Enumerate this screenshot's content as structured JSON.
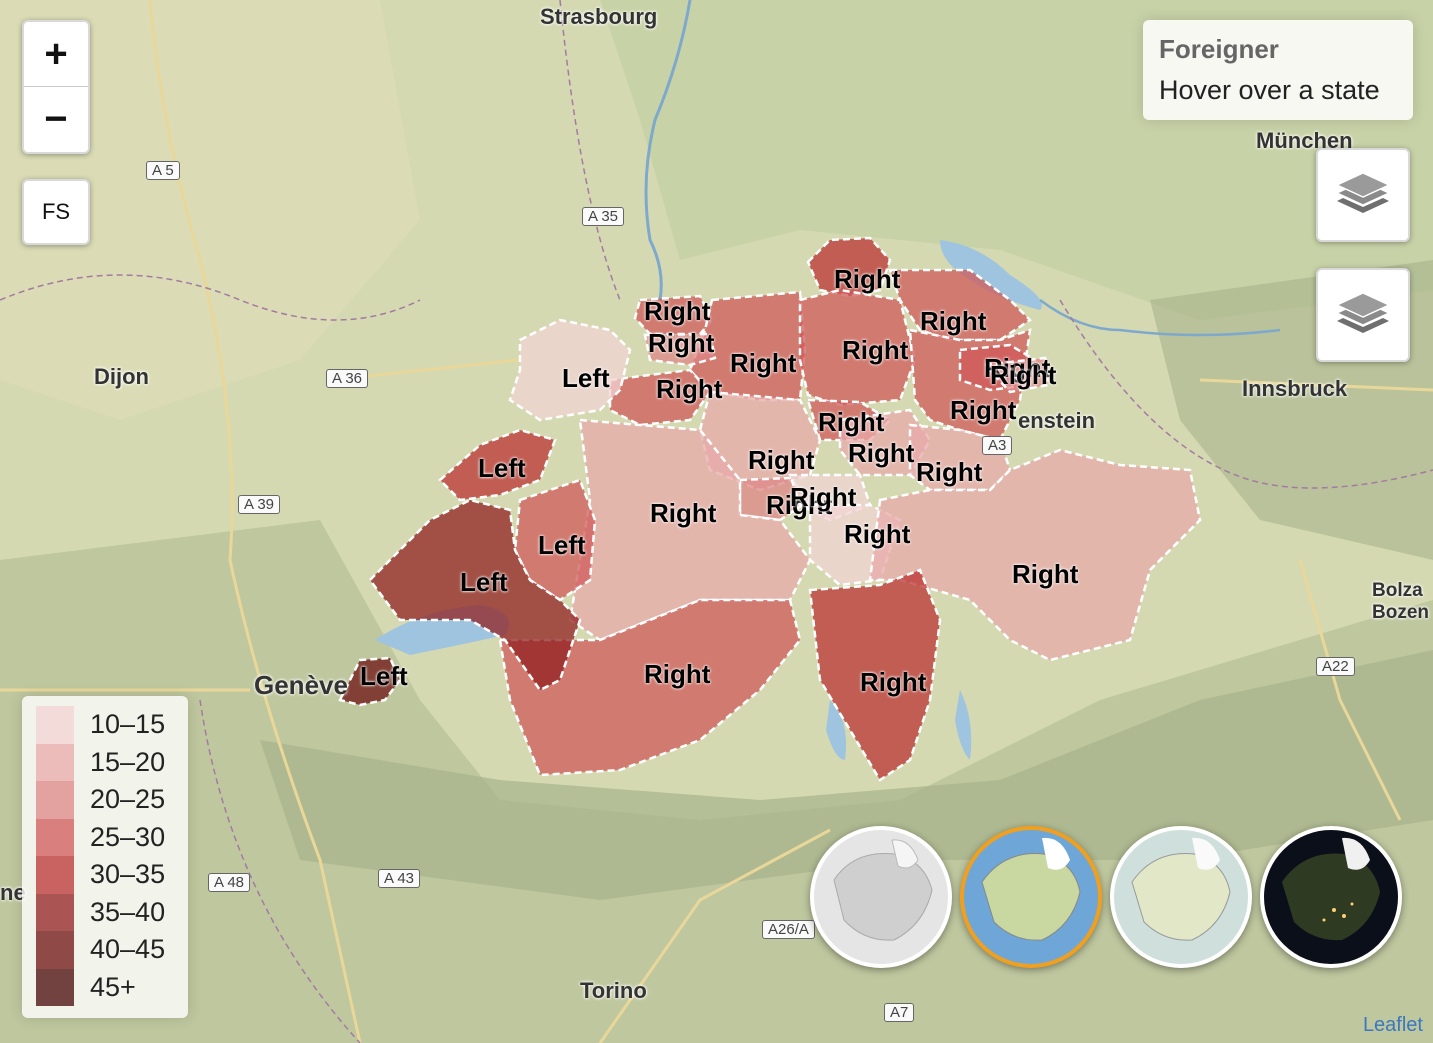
{
  "zoom": {
    "in_label": "+",
    "out_label": "−"
  },
  "fullscreen": {
    "label": "FS"
  },
  "info": {
    "title": "Foreigner",
    "hint": "Hover over a state"
  },
  "layer_buttons": [
    {
      "icon": "layers-icon"
    },
    {
      "icon": "layers-icon"
    }
  ],
  "places": [
    {
      "name": "Strasbourg"
    },
    {
      "name": "München"
    },
    {
      "name": "Dijon"
    },
    {
      "name": "Innsbruck"
    },
    {
      "name": "Genève"
    },
    {
      "name": "Torino"
    },
    {
      "name": "Bolza"
    },
    {
      "name": "Bozen"
    },
    {
      "name": "enstein"
    },
    {
      "name": "ne"
    }
  ],
  "roads": [
    "A 5",
    "A 35",
    "A 36",
    "A 39",
    "A 48",
    "A 43",
    "A26/A",
    "A7",
    "A22",
    "A3"
  ],
  "legend": {
    "colors": [
      "#f2d3d3",
      "#e8a9a9",
      "#dd8686",
      "#d05a5a",
      "#bb3333",
      "#912020",
      "#6d1212",
      "#450707"
    ],
    "labels": [
      "10–15",
      "15–20",
      "20–25",
      "25–30",
      "30–35",
      "35–40",
      "40–45",
      "45+"
    ]
  },
  "regions": [
    {
      "label": "Right",
      "bin": 4
    },
    {
      "label": "Right",
      "bin": 3
    },
    {
      "label": "Right",
      "bin": 3
    },
    {
      "label": "Right",
      "bin": 3
    },
    {
      "label": "Right",
      "bin": 3
    },
    {
      "label": "Right",
      "bin": 2
    },
    {
      "label": "Right",
      "bin": 3
    },
    {
      "label": "Right",
      "bin": 3
    },
    {
      "label": "Right",
      "bin": 3
    },
    {
      "label": "Right",
      "bin": 2
    },
    {
      "label": "Right",
      "bin": 3
    },
    {
      "label": "Right",
      "bin": 1
    },
    {
      "label": "Right",
      "bin": 1
    },
    {
      "label": "Right",
      "bin": 1
    },
    {
      "label": "Right",
      "bin": 2
    },
    {
      "label": "Right",
      "bin": 0
    },
    {
      "label": "Right",
      "bin": 0
    },
    {
      "label": "Right",
      "bin": 1
    },
    {
      "label": "Right",
      "bin": 1
    },
    {
      "label": "Right",
      "bin": 3
    },
    {
      "label": "Right",
      "bin": 4
    },
    {
      "label": "Left",
      "bin": 0
    },
    {
      "label": "Left",
      "bin": 4
    },
    {
      "label": "Left",
      "bin": 3
    },
    {
      "label": "Left",
      "bin": 5
    },
    {
      "label": "Left",
      "bin": 6
    }
  ],
  "minimaps": [
    {
      "name": "grey-basemap",
      "active": false
    },
    {
      "name": "street-basemap",
      "active": true
    },
    {
      "name": "light-basemap",
      "active": false
    },
    {
      "name": "satellite-night-basemap",
      "active": false
    }
  ],
  "attribution": "Leaflet"
}
